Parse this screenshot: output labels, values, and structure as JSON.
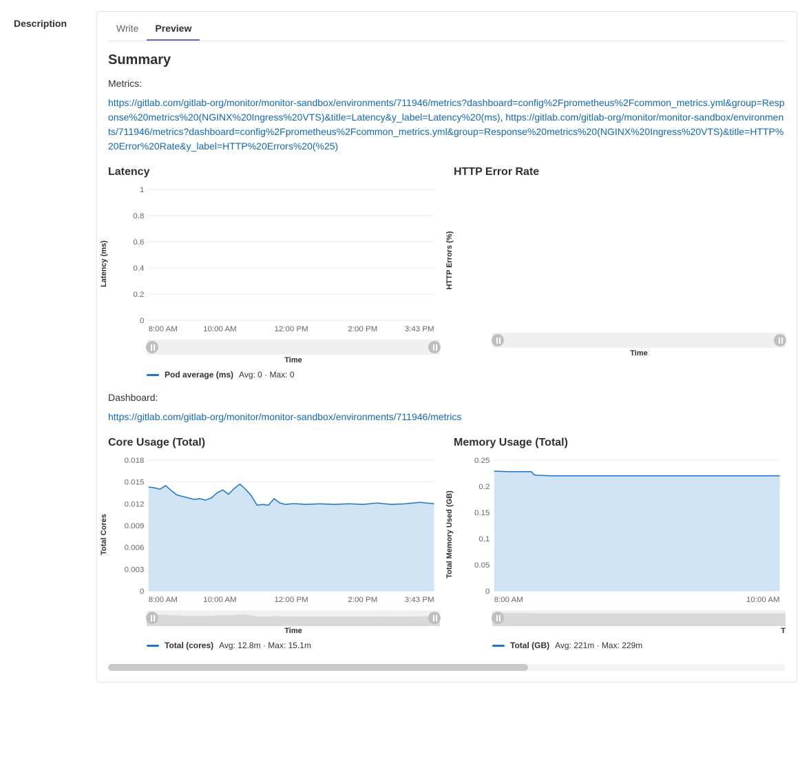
{
  "leftLabel": "Description",
  "tabs": {
    "write": "Write",
    "preview": "Preview",
    "active": "preview"
  },
  "summaryHeading": "Summary",
  "metricsLabel": "Metrics:",
  "link1": "https://gitlab.com/gitlab-org/monitor/monitor-sandbox/environments/711946/metrics?dashboard=config%2Fprometheus%2Fcommon_metrics.yml&group=Response%20metrics%20(NGINX%20Ingress%20VTS)&title=Latency&y_label=Latency%20(ms)",
  "linkSep": ", ",
  "link2": "https://gitlab.com/gitlab-org/monitor/monitor-sandbox/environments/711946/metrics?dashboard=config%2Fprometheus%2Fcommon_metrics.yml&group=Response%20metrics%20(NGINX%20Ingress%20VTS)&title=HTTP%20Error%20Rate&y_label=HTTP%20Errors%20(%25)",
  "dashboardLabel": "Dashboard:",
  "link3": "https://gitlab.com/gitlab-org/monitor/monitor-sandbox/environments/711946/metrics",
  "charts": {
    "latency": {
      "title": "Latency",
      "ylabel": "Latency (ms)",
      "xlabel": "Time",
      "type": "line",
      "y_ticks": [
        "0",
        "0.2",
        "0.4",
        "0.6",
        "0.8",
        "1"
      ],
      "x_ticks": [
        "8:00 AM",
        "10:00 AM",
        "12:00 PM",
        "2:00 PM",
        "3:43 PM"
      ],
      "ylim": [
        0,
        1
      ],
      "legend": {
        "color": "#1f75cb",
        "name": "Pod average (ms)",
        "stats": "Avg: 0 · Max: 0"
      },
      "series": [],
      "grid_color": "#eaeaea",
      "axis_color": "#666666",
      "label_fontsize": 11
    },
    "httpError": {
      "title": "HTTP Error Rate",
      "ylabel": "HTTP Errors (%)",
      "xlabel": "Time",
      "type": "line",
      "y_ticks": [],
      "x_ticks": [],
      "series": [],
      "grid_color": "#eaeaea",
      "label_fontsize": 11
    },
    "core": {
      "title": "Core Usage (Total)",
      "ylabel": "Total Cores",
      "xlabel": "Time",
      "type": "area",
      "y_ticks": [
        "0",
        "0.003",
        "0.006",
        "0.009",
        "0.012",
        "0.015",
        "0.018"
      ],
      "x_ticks": [
        "8:00 AM",
        "10:00 AM",
        "12:00 PM",
        "2:00 PM",
        "3:43 PM"
      ],
      "ylim": [
        0,
        0.018
      ],
      "legend": {
        "color": "#1f75cb",
        "name": "Total (cores)",
        "stats": "Avg: 12.8m · Max: 15.1m"
      },
      "fill_color": "#d1e4f6",
      "line_color": "#1f75cb",
      "grid_color": "#eaeaea",
      "axis_color": "#666666",
      "label_fontsize": 11,
      "series": [
        [
          0,
          0.0143
        ],
        [
          0.02,
          0.0142
        ],
        [
          0.04,
          0.014
        ],
        [
          0.06,
          0.0145
        ],
        [
          0.08,
          0.0138
        ],
        [
          0.1,
          0.0132
        ],
        [
          0.12,
          0.013
        ],
        [
          0.14,
          0.0128
        ],
        [
          0.16,
          0.0126
        ],
        [
          0.18,
          0.0127
        ],
        [
          0.2,
          0.0125
        ],
        [
          0.22,
          0.0128
        ],
        [
          0.24,
          0.0135
        ],
        [
          0.26,
          0.0139
        ],
        [
          0.28,
          0.0133
        ],
        [
          0.3,
          0.0141
        ],
        [
          0.32,
          0.0147
        ],
        [
          0.34,
          0.014
        ],
        [
          0.36,
          0.0131
        ],
        [
          0.38,
          0.0118
        ],
        [
          0.4,
          0.0119
        ],
        [
          0.42,
          0.0118
        ],
        [
          0.44,
          0.0127
        ],
        [
          0.46,
          0.0121
        ],
        [
          0.48,
          0.0119
        ],
        [
          0.5,
          0.012
        ],
        [
          0.52,
          0.012
        ],
        [
          0.55,
          0.0119
        ],
        [
          0.6,
          0.012
        ],
        [
          0.65,
          0.0119
        ],
        [
          0.7,
          0.012
        ],
        [
          0.75,
          0.0119
        ],
        [
          0.8,
          0.0121
        ],
        [
          0.85,
          0.0119
        ],
        [
          0.9,
          0.012
        ],
        [
          0.95,
          0.0122
        ],
        [
          1.0,
          0.012
        ]
      ]
    },
    "memory": {
      "title": "Memory Usage (Total)",
      "ylabel": "Total Memory Used (GB)",
      "xlabel": "T",
      "type": "area",
      "y_ticks": [
        "0",
        "0.05",
        "0.1",
        "0.15",
        "0.2",
        "0.25"
      ],
      "x_ticks": [
        "8:00 AM",
        "10:00 AM"
      ],
      "ylim": [
        0,
        0.25
      ],
      "legend": {
        "color": "#1f75cb",
        "name": "Total (GB)",
        "stats": "Avg: 221m · Max: 229m"
      },
      "fill_color": "#d1e4f6",
      "line_color": "#1f75cb",
      "grid_color": "#eaeaea",
      "axis_color": "#666666",
      "label_fontsize": 11,
      "series": [
        [
          0,
          0.229
        ],
        [
          0.05,
          0.228
        ],
        [
          0.1,
          0.228
        ],
        [
          0.13,
          0.228
        ],
        [
          0.14,
          0.222
        ],
        [
          0.15,
          0.221
        ],
        [
          0.2,
          0.22
        ],
        [
          0.3,
          0.22
        ],
        [
          0.4,
          0.22
        ],
        [
          0.5,
          0.22
        ],
        [
          0.6,
          0.22
        ],
        [
          0.7,
          0.22
        ],
        [
          0.8,
          0.22
        ],
        [
          0.9,
          0.22
        ],
        [
          1.0,
          0.22
        ]
      ]
    }
  }
}
